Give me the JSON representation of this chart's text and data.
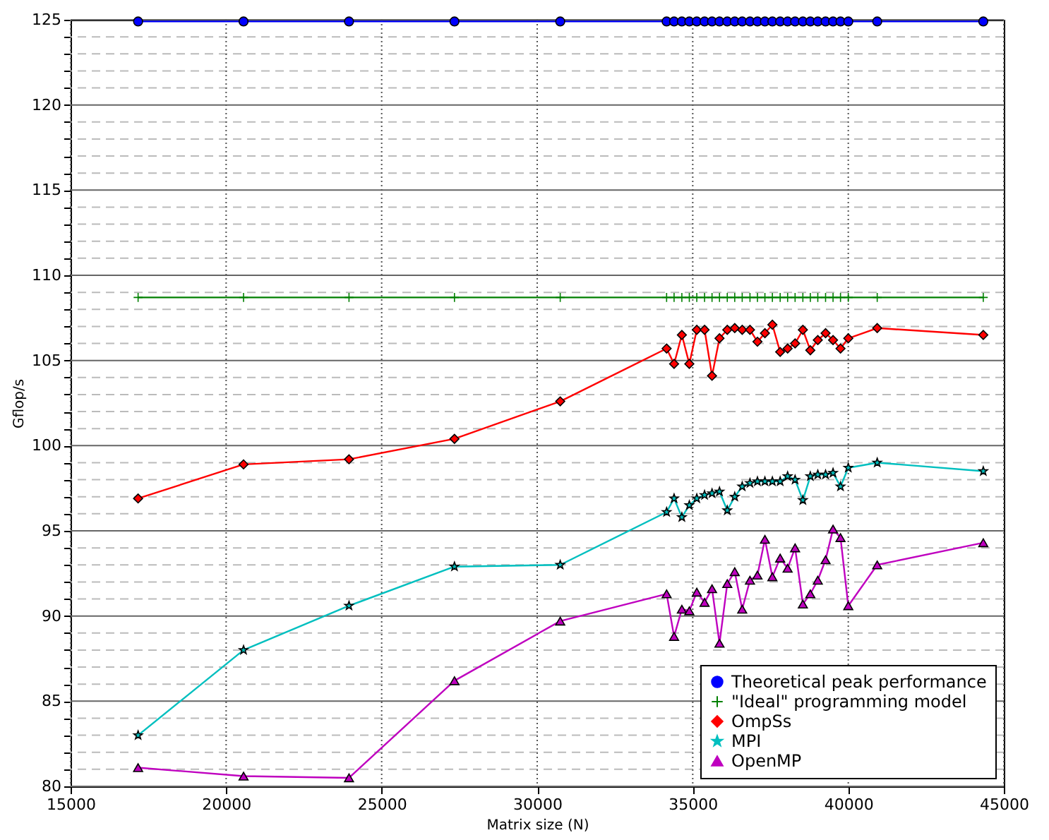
{
  "chart_data": {
    "type": "line",
    "xlabel": "Matrix size (N)",
    "ylabel": "Gflop/s",
    "x": [
      17170,
      20560,
      23950,
      27340,
      30740,
      34160,
      34400,
      34650,
      34890,
      35130,
      35380,
      35620,
      35860,
      36110,
      36350,
      36590,
      36840,
      37080,
      37320,
      37560,
      37810,
      38050,
      38290,
      38540,
      38780,
      39020,
      39270,
      39510,
      39750,
      40000,
      40930,
      44340
    ],
    "xlim": [
      15000,
      45000
    ],
    "xticks": [
      15000,
      20000,
      25000,
      30000,
      35000,
      40000,
      45000
    ],
    "ylim": [
      80,
      125
    ],
    "yticks": [
      80,
      {
        "value": 81,
        "label": null
      },
      {
        "value": 82,
        "label": null
      },
      {
        "value": 83,
        "label": null
      },
      {
        "value": 84,
        "label": null
      },
      85,
      {
        "value": 86,
        "label": null
      },
      {
        "value": 87,
        "label": null
      },
      {
        "value": 88,
        "label": null
      },
      {
        "value": 89,
        "label": null
      },
      90,
      {
        "value": 91,
        "label": null
      },
      {
        "value": 92,
        "label": null
      },
      {
        "value": 93,
        "label": null
      },
      {
        "value": 94,
        "label": null
      },
      95,
      {
        "value": 96,
        "label": null
      },
      {
        "value": 97,
        "label": null
      },
      {
        "value": 98,
        "label": null
      },
      {
        "value": 99,
        "label": null
      },
      100,
      {
        "value": 101,
        "label": null
      },
      {
        "value": 102,
        "label": null
      },
      {
        "value": 103,
        "label": null
      },
      {
        "value": 104,
        "label": null
      },
      105,
      {
        "value": 106,
        "label": null
      },
      {
        "value": 107,
        "label": null
      },
      {
        "value": 108,
        "label": null
      },
      {
        "value": 109,
        "label": null
      },
      110,
      {
        "value": 111,
        "label": null
      },
      {
        "value": 112,
        "label": null
      },
      {
        "value": 113,
        "label": null
      },
      {
        "value": 114,
        "label": null
      },
      115,
      {
        "value": 116,
        "label": null
      },
      {
        "value": 117,
        "label": null
      },
      {
        "value": 118,
        "label": null
      },
      {
        "value": 119,
        "label": null
      },
      120,
      {
        "value": 121,
        "label": null
      },
      {
        "value": 122,
        "label": null
      },
      {
        "value": 123,
        "label": null
      },
      {
        "value": 124,
        "label": null
      },
      125
    ],
    "grid": true,
    "legend": "bottom right",
    "line_style": "solid",
    "series": [
      {
        "name": "Theoretical peak performance",
        "color": "#0000ff",
        "marker": "circle",
        "values": [
          124.9,
          124.9,
          124.9,
          124.9,
          124.9,
          124.9,
          124.9,
          124.9,
          124.9,
          124.9,
          124.9,
          124.9,
          124.9,
          124.9,
          124.9,
          124.9,
          124.9,
          124.9,
          124.9,
          124.9,
          124.9,
          124.9,
          124.9,
          124.9,
          124.9,
          124.9,
          124.9,
          124.9,
          124.9,
          124.9,
          124.9,
          124.9
        ]
      },
      {
        "name": "\"Ideal\" programming model",
        "color": "#008000",
        "marker": "cross",
        "values": [
          108.7,
          108.7,
          108.7,
          108.7,
          108.7,
          108.7,
          108.7,
          108.7,
          108.7,
          108.7,
          108.7,
          108.7,
          108.7,
          108.7,
          108.7,
          108.7,
          108.7,
          108.7,
          108.7,
          108.7,
          108.7,
          108.7,
          108.7,
          108.7,
          108.7,
          108.7,
          108.7,
          108.7,
          108.7,
          108.7,
          108.7,
          108.7
        ]
      },
      {
        "name": "OmpSs",
        "color": "#ff0000",
        "marker": "diamond",
        "values": [
          96.9,
          98.9,
          99.2,
          100.4,
          102.6,
          105.7,
          104.8,
          106.5,
          104.8,
          106.8,
          106.8,
          104.1,
          106.3,
          106.8,
          106.9,
          106.8,
          106.8,
          106.1,
          106.6,
          107.1,
          105.5,
          105.7,
          106.0,
          106.8,
          105.6,
          106.2,
          106.6,
          106.2,
          105.7,
          106.3,
          106.9,
          106.5
        ]
      },
      {
        "name": "MPI",
        "color": "#00bfbf",
        "marker": "star",
        "values": [
          83.0,
          88.0,
          90.6,
          92.9,
          93.0,
          96.1,
          96.9,
          95.8,
          96.5,
          96.9,
          97.1,
          97.2,
          97.3,
          96.2,
          97.0,
          97.6,
          97.8,
          97.9,
          97.9,
          97.9,
          97.9,
          98.2,
          98.0,
          96.8,
          98.2,
          98.3,
          98.3,
          98.4,
          97.6,
          98.7,
          99.0,
          98.5
        ]
      },
      {
        "name": "OpenMP",
        "color": "#bf00bf",
        "marker": "triangle",
        "values": [
          81.1,
          80.6,
          80.5,
          86.2,
          89.7,
          91.3,
          88.8,
          90.4,
          90.3,
          91.4,
          90.8,
          91.6,
          88.4,
          91.9,
          92.6,
          90.4,
          92.1,
          92.4,
          94.5,
          92.3,
          93.4,
          92.8,
          94.0,
          90.7,
          91.3,
          92.1,
          93.3,
          95.1,
          94.6,
          90.6,
          93.0,
          94.3
        ]
      }
    ]
  }
}
